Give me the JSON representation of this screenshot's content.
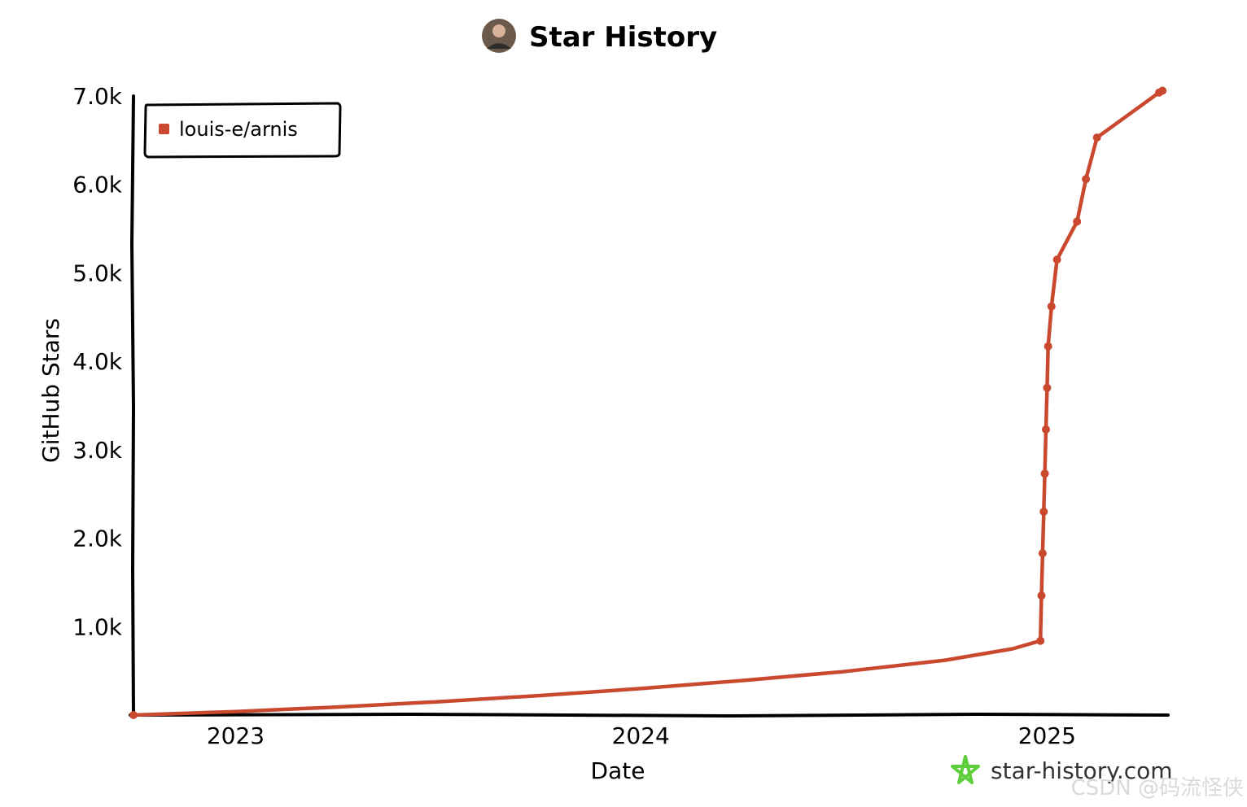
{
  "header": {
    "title": "Star History",
    "avatar_icon": "user-avatar"
  },
  "branding": {
    "site": "star-history.com",
    "icon": "star-history-logo-icon",
    "icon_color": "#5fce3c"
  },
  "watermark": {
    "text": "CSDN @码流怪侠"
  },
  "chart_data": {
    "type": "line",
    "title": "Star History",
    "xlabel": "Date",
    "ylabel": "GitHub Stars",
    "x_ticks": [
      "2023",
      "2024",
      "2025"
    ],
    "x_range": [
      "2022-10-01",
      "2025-04-20"
    ],
    "y_ticks": [
      "1.0k",
      "2.0k",
      "3.0k",
      "4.0k",
      "5.0k",
      "6.0k",
      "7.0k"
    ],
    "ylim": [
      0,
      7000
    ],
    "grid": false,
    "legend_position": "top-left",
    "series": [
      {
        "name": "louis-e/arnis",
        "color": "#c9482e",
        "points": [
          {
            "x": "2022-10-01",
            "y": 0
          },
          {
            "x": "2023-01-01",
            "y": 40
          },
          {
            "x": "2023-04-01",
            "y": 90
          },
          {
            "x": "2023-07-01",
            "y": 150
          },
          {
            "x": "2023-10-01",
            "y": 220
          },
          {
            "x": "2024-01-01",
            "y": 300
          },
          {
            "x": "2024-04-01",
            "y": 390
          },
          {
            "x": "2024-07-01",
            "y": 490
          },
          {
            "x": "2024-10-01",
            "y": 620
          },
          {
            "x": "2024-12-01",
            "y": 750
          },
          {
            "x": "2024-12-26",
            "y": 840
          },
          {
            "x": "2024-12-27",
            "y": 1350
          },
          {
            "x": "2024-12-28",
            "y": 1830
          },
          {
            "x": "2024-12-29",
            "y": 2300
          },
          {
            "x": "2024-12-30",
            "y": 2730
          },
          {
            "x": "2024-12-31",
            "y": 3230
          },
          {
            "x": "2025-01-01",
            "y": 3700
          },
          {
            "x": "2025-01-02",
            "y": 4170
          },
          {
            "x": "2025-01-05",
            "y": 4620
          },
          {
            "x": "2025-01-10",
            "y": 5150
          },
          {
            "x": "2025-01-28",
            "y": 5580
          },
          {
            "x": "2025-02-05",
            "y": 6060
          },
          {
            "x": "2025-02-15",
            "y": 6530
          },
          {
            "x": "2025-04-12",
            "y": 7040
          },
          {
            "x": "2025-04-15",
            "y": 7060
          }
        ]
      }
    ]
  }
}
